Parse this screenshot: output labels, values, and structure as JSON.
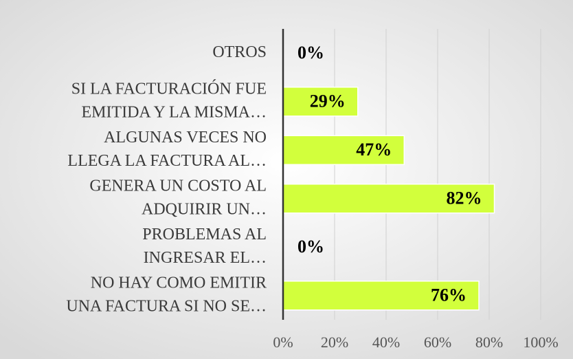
{
  "chart_data": {
    "type": "bar",
    "orientation": "horizontal",
    "categories": [
      [
        "OTROS"
      ],
      [
        "SI LA FACTURACIÓN FUE",
        "EMITIDA Y LA MISMA…"
      ],
      [
        "ALGUNAS VECES NO",
        "LLEGA LA FACTURA AL…"
      ],
      [
        "GENERA UN COSTO AL",
        "ADQUIRIR UN…"
      ],
      [
        "PROBLEMAS AL",
        "INGRESAR EL…"
      ],
      [
        "NO HAY COMO EMITIR",
        "UNA FACTURA SI NO SE…"
      ]
    ],
    "values": [
      0,
      29,
      47,
      82,
      0,
      76
    ],
    "value_labels": [
      "0%",
      "29%",
      "47%",
      "82%",
      "0%",
      "76%"
    ],
    "color": "#d2ff3c",
    "xlim": [
      0,
      100
    ],
    "xticks": [
      {
        "value": 0,
        "label": "0%"
      },
      {
        "value": 20,
        "label": "20%"
      },
      {
        "value": 40,
        "label": "40%"
      },
      {
        "value": 60,
        "label": "60%"
      },
      {
        "value": 80,
        "label": "80%"
      },
      {
        "value": 100,
        "label": "100%"
      }
    ],
    "grid": true
  }
}
